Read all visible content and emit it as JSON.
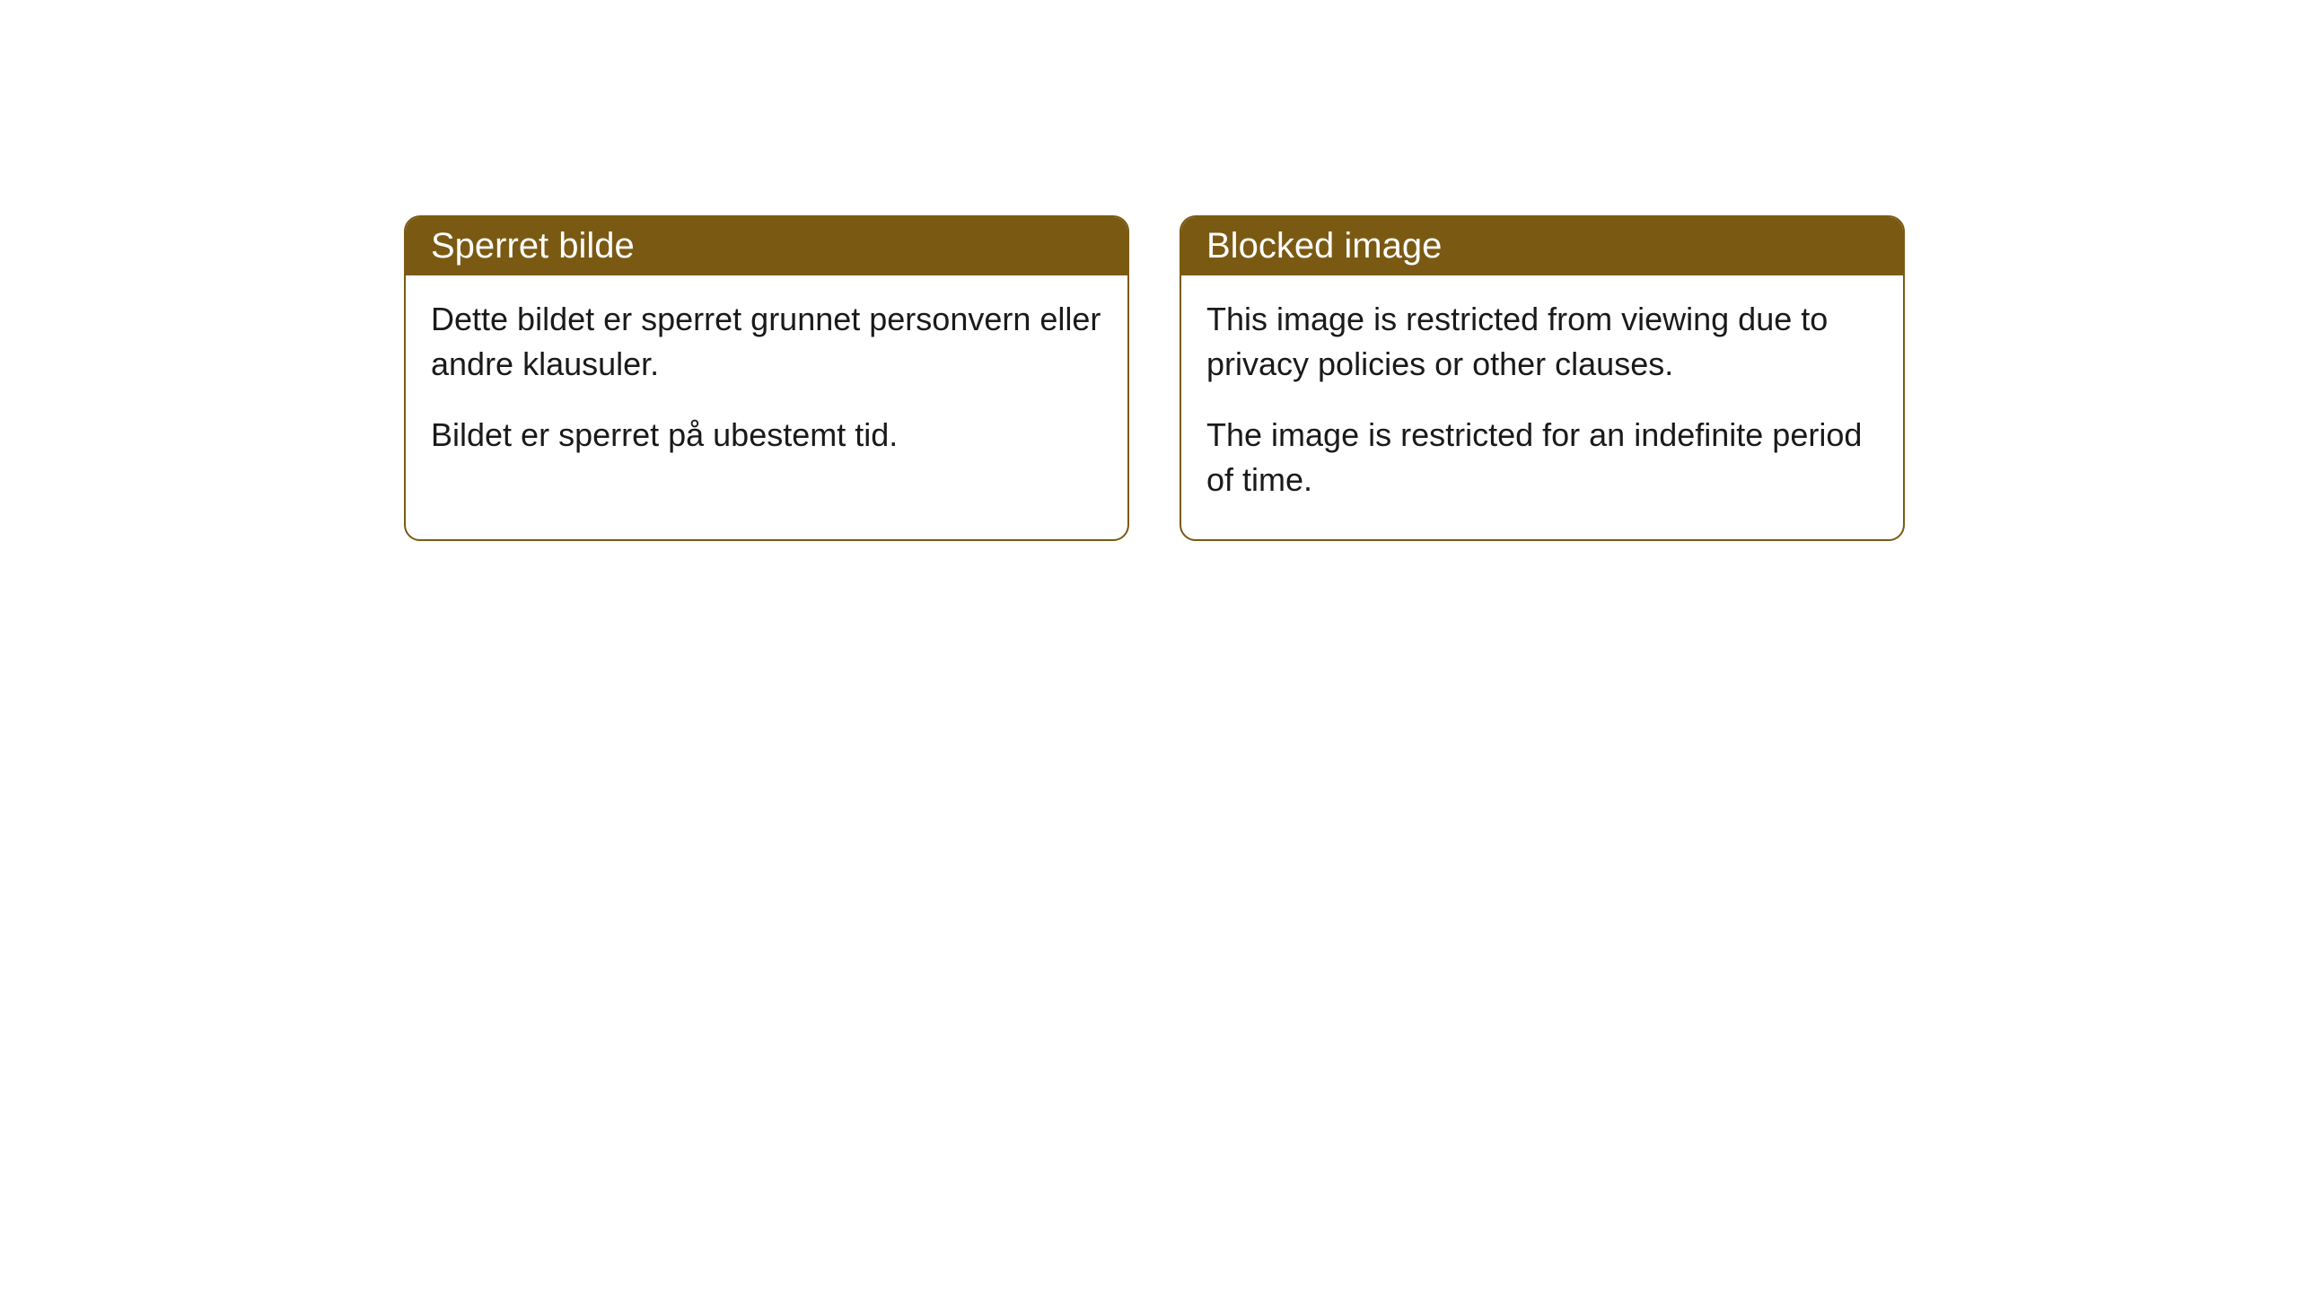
{
  "cards": [
    {
      "title": "Sperret bilde",
      "paragraph1": "Dette bildet er sperret grunnet personvern eller andre klausuler.",
      "paragraph2": "Bildet er sperret på ubestemt tid."
    },
    {
      "title": "Blocked image",
      "paragraph1": "This image is restricted from viewing due to privacy policies or other clauses.",
      "paragraph2": "The image is restricted for an indefinite period of time."
    }
  ],
  "styling": {
    "header_background": "#7a5a13",
    "header_text_color": "#ffffff",
    "card_border_color": "#7a5a13",
    "card_background": "#ffffff",
    "body_text_color": "#1a1a1a",
    "border_radius": 18,
    "title_fontsize": 40,
    "body_fontsize": 36
  }
}
